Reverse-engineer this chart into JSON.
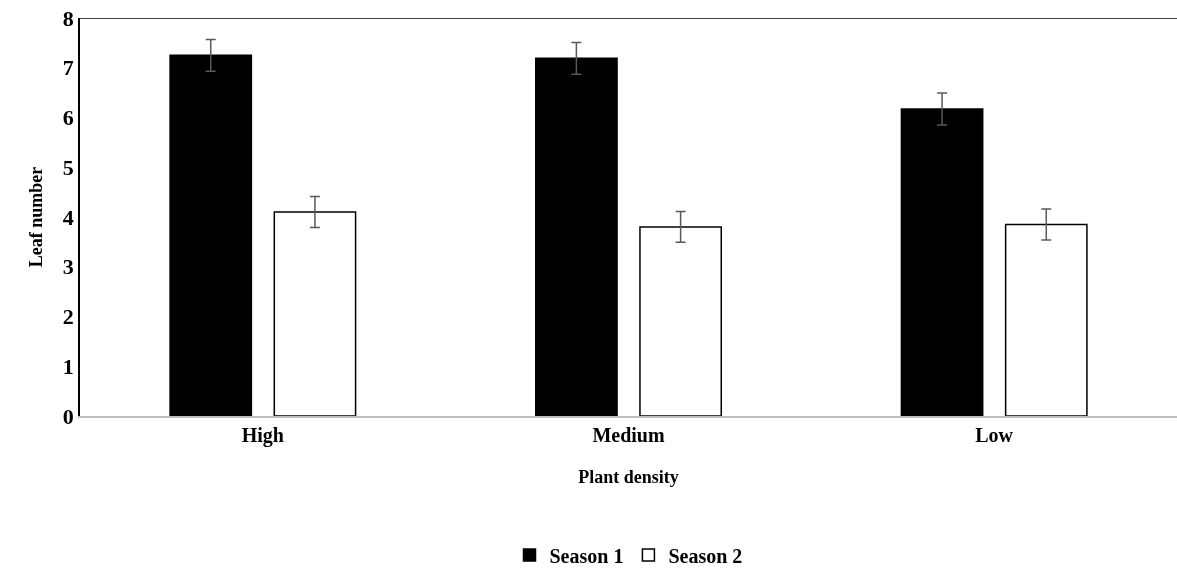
{
  "chart_data": {
    "type": "bar",
    "xlabel": "Plant density",
    "ylabel": "Leaf number",
    "categories": [
      "High",
      "Medium",
      "Low"
    ],
    "series": [
      {
        "name": "Season 1",
        "color": "#000000",
        "values": [
          7.25,
          7.19,
          6.17
        ],
        "errors": [
          0.32,
          0.32,
          0.32
        ]
      },
      {
        "name": "Season 2",
        "color": "#ffffff",
        "values": [
          4.1,
          3.8,
          3.85
        ],
        "errors": [
          0.31,
          0.31,
          0.31
        ]
      }
    ],
    "ylim": [
      0,
      8
    ],
    "yticks": [
      0,
      1,
      2,
      3,
      4,
      5,
      6,
      7,
      8
    ],
    "legend": "bottom"
  }
}
